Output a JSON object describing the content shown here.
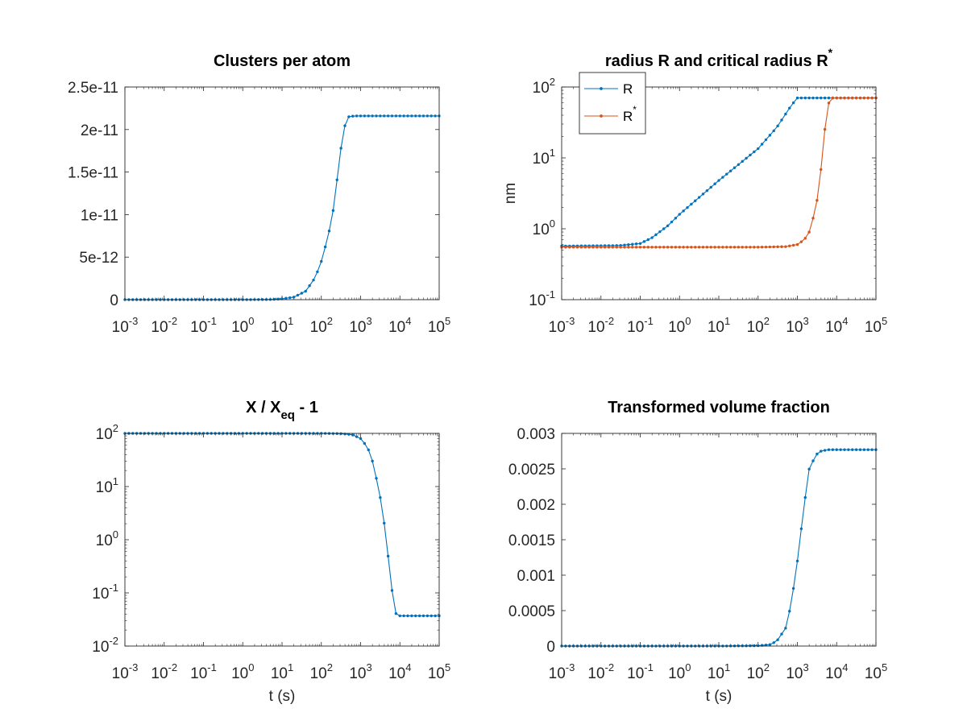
{
  "chart_data": [
    {
      "type": "line",
      "title": "Clusters per atom",
      "xlabel": "",
      "ylabel": "",
      "xscale": "log",
      "yscale": "linear",
      "xlim": [
        0.001,
        100000
      ],
      "ylim": [
        0,
        2.5e-11
      ],
      "xticks": [
        "10^-3",
        "10^-2",
        "10^-1",
        "10^0",
        "10^1",
        "10^2",
        "10^3",
        "10^4",
        "10^5"
      ],
      "yticks": [
        "0",
        "5e-12",
        "1e-11",
        "1.5e-11",
        "2e-11",
        "2.5e-11"
      ],
      "series": [
        {
          "color": "#0072bd",
          "marker": "dot",
          "x": [
            0.001,
            0.1,
            1,
            5,
            10,
            20,
            40,
            70,
            100,
            150,
            200,
            250,
            300,
            400,
            500,
            700,
            1000,
            10000,
            100000
          ],
          "y": [
            0,
            0,
            0,
            2e-14,
            1e-13,
            3e-13,
            1e-12,
            2.6e-12,
            4.5e-12,
            7.5e-12,
            1.05e-11,
            1.4e-11,
            1.72e-11,
            2.05e-11,
            2.15e-11,
            2.16e-11,
            2.16e-11,
            2.16e-11,
            2.16e-11
          ]
        }
      ]
    },
    {
      "type": "line",
      "title": "radius R and critical radius R",
      "title_sup": "*",
      "xlabel": "",
      "ylabel": "nm",
      "xscale": "log",
      "yscale": "log",
      "xlim": [
        0.001,
        100000
      ],
      "ylim": [
        0.1,
        100
      ],
      "xticks": [
        "10^-3",
        "10^-2",
        "10^-1",
        "10^0",
        "10^1",
        "10^2",
        "10^3",
        "10^4",
        "10^5"
      ],
      "yticks": [
        "10^-1",
        "10^0",
        "10^1",
        "10^2"
      ],
      "legend": "top-left",
      "series": [
        {
          "name": "R",
          "color": "#0072bd",
          "marker": "dot",
          "x": [
            0.001,
            0.03,
            0.1,
            0.2,
            0.5,
            1,
            10,
            100,
            300,
            700,
            1000,
            10000,
            100000
          ],
          "y": [
            0.57,
            0.58,
            0.62,
            0.75,
            1.1,
            1.6,
            4.8,
            13.5,
            27,
            55,
            70,
            70,
            70
          ]
        },
        {
          "name": "R",
          "name_sup": "*",
          "color": "#d95319",
          "marker": "dot",
          "x": [
            0.001,
            100,
            500,
            1000,
            1500,
            2000,
            3000,
            4000,
            5000,
            6000,
            7000,
            10000,
            100000
          ],
          "y": [
            0.55,
            0.55,
            0.56,
            0.6,
            0.7,
            0.9,
            2,
            7,
            25,
            55,
            70,
            70,
            70
          ]
        }
      ]
    },
    {
      "type": "line",
      "title": "X / X",
      "title_sub": "eq",
      "title_suffix": " - 1",
      "xlabel": "t (s)",
      "ylabel": "",
      "xscale": "log",
      "yscale": "log",
      "xlim": [
        0.001,
        100000
      ],
      "ylim": [
        0.01,
        100
      ],
      "xticks": [
        "10^-3",
        "10^-2",
        "10^-1",
        "10^0",
        "10^1",
        "10^2",
        "10^3",
        "10^4",
        "10^5"
      ],
      "yticks": [
        "10^-2",
        "10^-1",
        "10^0",
        "10^1",
        "10^2"
      ],
      "series": [
        {
          "color": "#0072bd",
          "marker": "dot",
          "x": [
            0.001,
            100,
            300,
            600,
            1000,
            1500,
            2000,
            3000,
            4000,
            5000,
            6000,
            7000,
            8000,
            10000,
            100000
          ],
          "y": [
            100,
            100,
            99,
            95,
            80,
            55,
            30,
            8,
            2,
            0.5,
            0.15,
            0.06,
            0.04,
            0.037,
            0.037
          ]
        }
      ]
    },
    {
      "type": "line",
      "title": "Transformed volume fraction",
      "xlabel": "t (s)",
      "ylabel": "",
      "xscale": "log",
      "yscale": "linear",
      "xlim": [
        0.001,
        100000
      ],
      "ylim": [
        0,
        0.003
      ],
      "xticks": [
        "10^-3",
        "10^-2",
        "10^-1",
        "10^0",
        "10^1",
        "10^2",
        "10^3",
        "10^4",
        "10^5"
      ],
      "yticks": [
        "0",
        "0.0005",
        "0.001",
        "0.0015",
        "0.002",
        "0.0025",
        "0.003"
      ],
      "series": [
        {
          "color": "#0072bd",
          "marker": "dot",
          "x": [
            0.001,
            10,
            100,
            200,
            300,
            500,
            700,
            1000,
            1500,
            2000,
            3000,
            4000,
            6000,
            10000,
            100000
          ],
          "y": [
            0,
            0,
            5e-06,
            2e-05,
            7e-05,
            0.00025,
            0.0006,
            0.0012,
            0.002,
            0.0025,
            0.0027,
            0.00275,
            0.00277,
            0.00277,
            0.00277
          ]
        }
      ]
    }
  ]
}
